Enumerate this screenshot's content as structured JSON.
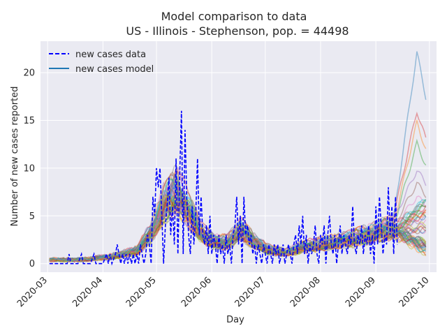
{
  "chart_data": {
    "type": "line",
    "title_line1": "Model comparison to data",
    "title_line2": "US - Illinois - Stephenson, pop. = 44498",
    "xlabel": "Day",
    "ylabel": "Number of new cases reported",
    "x_tick_labels": [
      "2020-03",
      "2020-04",
      "2020-05",
      "2020-06",
      "2020-07",
      "2020-08",
      "2020-09",
      "2020-10"
    ],
    "y_ticks": [
      0,
      5,
      10,
      15,
      20
    ],
    "ylim": [
      -0.9,
      23.3
    ],
    "xlim": [
      "2020-02-26",
      "2020-10-05"
    ],
    "x_start": "2020-03-02",
    "x_end": "2020-09-29",
    "grid": true,
    "legend_position": "top-left",
    "colors": {
      "data": "#0000ff",
      "model": "#1f77b4",
      "background": "#eaeaf2",
      "grid": "#ffffff"
    },
    "model_color_cycle": [
      "#1f77b4",
      "#ff7f0e",
      "#2ca02c",
      "#d62728",
      "#9467bd",
      "#8c564b",
      "#e377c2",
      "#7f7f7f",
      "#bcbd22",
      "#17becf"
    ],
    "series": [
      {
        "name": "new cases data",
        "style": "dashed",
        "points": [
          [
            "2020-03-02",
            0
          ],
          [
            "2020-03-08",
            0
          ],
          [
            "2020-03-12",
            0
          ],
          [
            "2020-03-13",
            1
          ],
          [
            "2020-03-14",
            0
          ],
          [
            "2020-03-18",
            0
          ],
          [
            "2020-03-20",
            1
          ],
          [
            "2020-03-21",
            0
          ],
          [
            "2020-03-25",
            0
          ],
          [
            "2020-03-27",
            1
          ],
          [
            "2020-03-28",
            0
          ],
          [
            "2020-04-01",
            0
          ],
          [
            "2020-04-03",
            1
          ],
          [
            "2020-04-04",
            0
          ],
          [
            "2020-04-05",
            1
          ],
          [
            "2020-04-06",
            0
          ],
          [
            "2020-04-08",
            1
          ],
          [
            "2020-04-09",
            2
          ],
          [
            "2020-04-10",
            1
          ],
          [
            "2020-04-11",
            0
          ],
          [
            "2020-04-12",
            1
          ],
          [
            "2020-04-13",
            0
          ],
          [
            "2020-04-14",
            1
          ],
          [
            "2020-04-15",
            0
          ],
          [
            "2020-04-16",
            1
          ],
          [
            "2020-04-17",
            0
          ],
          [
            "2020-04-18",
            1
          ],
          [
            "2020-04-19",
            0
          ],
          [
            "2020-04-20",
            1
          ],
          [
            "2020-04-21",
            0
          ],
          [
            "2020-04-22",
            2
          ],
          [
            "2020-04-23",
            1
          ],
          [
            "2020-04-24",
            0
          ],
          [
            "2020-04-25",
            1
          ],
          [
            "2020-04-26",
            3
          ],
          [
            "2020-04-27",
            2
          ],
          [
            "2020-04-28",
            0
          ],
          [
            "2020-04-29",
            7
          ],
          [
            "2020-04-30",
            5
          ],
          [
            "2020-05-01",
            10
          ],
          [
            "2020-05-02",
            8
          ],
          [
            "2020-05-03",
            10
          ],
          [
            "2020-05-04",
            5
          ],
          [
            "2020-05-05",
            0
          ],
          [
            "2020-05-06",
            4
          ],
          [
            "2020-05-07",
            6
          ],
          [
            "2020-05-08",
            9
          ],
          [
            "2020-05-09",
            3
          ],
          [
            "2020-05-10",
            6
          ],
          [
            "2020-05-11",
            2
          ],
          [
            "2020-05-12",
            11
          ],
          [
            "2020-05-13",
            1
          ],
          [
            "2020-05-14",
            9
          ],
          [
            "2020-05-15",
            16
          ],
          [
            "2020-05-16",
            1
          ],
          [
            "2020-05-17",
            14
          ],
          [
            "2020-05-18",
            7
          ],
          [
            "2020-05-19",
            3
          ],
          [
            "2020-05-20",
            1
          ],
          [
            "2020-05-21",
            6
          ],
          [
            "2020-05-22",
            2
          ],
          [
            "2020-05-23",
            5
          ],
          [
            "2020-05-24",
            11
          ],
          [
            "2020-05-25",
            3
          ],
          [
            "2020-05-26",
            7
          ],
          [
            "2020-05-27",
            3
          ],
          [
            "2020-05-28",
            2
          ],
          [
            "2020-05-29",
            4
          ],
          [
            "2020-05-30",
            1
          ],
          [
            "2020-05-31",
            5
          ],
          [
            "2020-06-01",
            1
          ],
          [
            "2020-06-02",
            3
          ],
          [
            "2020-06-03",
            2
          ],
          [
            "2020-06-04",
            0
          ],
          [
            "2020-06-05",
            3
          ],
          [
            "2020-06-06",
            1
          ],
          [
            "2020-06-07",
            2
          ],
          [
            "2020-06-08",
            0
          ],
          [
            "2020-06-09",
            3
          ],
          [
            "2020-06-10",
            1
          ],
          [
            "2020-06-11",
            2
          ],
          [
            "2020-06-12",
            0
          ],
          [
            "2020-06-13",
            3
          ],
          [
            "2020-06-14",
            4
          ],
          [
            "2020-06-15",
            7
          ],
          [
            "2020-06-16",
            2
          ],
          [
            "2020-06-17",
            5
          ],
          [
            "2020-06-18",
            0
          ],
          [
            "2020-06-19",
            7
          ],
          [
            "2020-06-20",
            3
          ],
          [
            "2020-06-21",
            4
          ],
          [
            "2020-06-22",
            2
          ],
          [
            "2020-06-23",
            3
          ],
          [
            "2020-06-24",
            1
          ],
          [
            "2020-06-25",
            2
          ],
          [
            "2020-06-26",
            0
          ],
          [
            "2020-06-27",
            2
          ],
          [
            "2020-06-28",
            1
          ],
          [
            "2020-06-29",
            0
          ],
          [
            "2020-06-30",
            2
          ],
          [
            "2020-07-01",
            1
          ],
          [
            "2020-07-02",
            0
          ],
          [
            "2020-07-03",
            2
          ],
          [
            "2020-07-04",
            1
          ],
          [
            "2020-07-05",
            0
          ],
          [
            "2020-07-06",
            2
          ],
          [
            "2020-07-07",
            1
          ],
          [
            "2020-07-08",
            2
          ],
          [
            "2020-07-09",
            0
          ],
          [
            "2020-07-10",
            1
          ],
          [
            "2020-07-11",
            2
          ],
          [
            "2020-07-12",
            0
          ],
          [
            "2020-07-13",
            1
          ],
          [
            "2020-07-14",
            2
          ],
          [
            "2020-07-15",
            1
          ],
          [
            "2020-07-16",
            0
          ],
          [
            "2020-07-17",
            2
          ],
          [
            "2020-07-18",
            3
          ],
          [
            "2020-07-19",
            1
          ],
          [
            "2020-07-20",
            4
          ],
          [
            "2020-07-21",
            2
          ],
          [
            "2020-07-22",
            5
          ],
          [
            "2020-07-23",
            1
          ],
          [
            "2020-07-24",
            3
          ],
          [
            "2020-07-25",
            0
          ],
          [
            "2020-07-26",
            2
          ],
          [
            "2020-07-27",
            1
          ],
          [
            "2020-07-28",
            2
          ],
          [
            "2020-07-29",
            4
          ],
          [
            "2020-07-30",
            1
          ],
          [
            "2020-07-31",
            0
          ],
          [
            "2020-08-01",
            3
          ],
          [
            "2020-08-02",
            2
          ],
          [
            "2020-08-03",
            4
          ],
          [
            "2020-08-04",
            0
          ],
          [
            "2020-08-05",
            3
          ],
          [
            "2020-08-06",
            5
          ],
          [
            "2020-08-07",
            2
          ],
          [
            "2020-08-08",
            1
          ],
          [
            "2020-08-09",
            3
          ],
          [
            "2020-08-10",
            0
          ],
          [
            "2020-08-11",
            2
          ],
          [
            "2020-08-12",
            4
          ],
          [
            "2020-08-13",
            1
          ],
          [
            "2020-08-14",
            3
          ],
          [
            "2020-08-15",
            2
          ],
          [
            "2020-08-16",
            1
          ],
          [
            "2020-08-17",
            3
          ],
          [
            "2020-08-18",
            2
          ],
          [
            "2020-08-19",
            6
          ],
          [
            "2020-08-20",
            2
          ],
          [
            "2020-08-21",
            1
          ],
          [
            "2020-08-22",
            3
          ],
          [
            "2020-08-23",
            2
          ],
          [
            "2020-08-24",
            4
          ],
          [
            "2020-08-25",
            1
          ],
          [
            "2020-08-26",
            3
          ],
          [
            "2020-08-27",
            2
          ],
          [
            "2020-08-28",
            4
          ],
          [
            "2020-08-29",
            1
          ],
          [
            "2020-08-30",
            3
          ],
          [
            "2020-08-31",
            0
          ],
          [
            "2020-09-01",
            6
          ],
          [
            "2020-09-02",
            2
          ],
          [
            "2020-09-03",
            7
          ],
          [
            "2020-09-04",
            4
          ],
          [
            "2020-09-05",
            1
          ],
          [
            "2020-09-06",
            3
          ],
          [
            "2020-09-07",
            2
          ],
          [
            "2020-09-08",
            8
          ],
          [
            "2020-09-09",
            3
          ],
          [
            "2020-09-10",
            6
          ],
          [
            "2020-09-11",
            1
          ],
          [
            "2020-09-12",
            7
          ],
          [
            "2020-09-13",
            2
          ]
        ]
      },
      {
        "name": "new cases model",
        "style": "solid",
        "count": 60,
        "knots": [
          [
            "2020-03-02",
            0.4
          ],
          [
            "2020-03-20",
            0.4
          ],
          [
            "2020-04-05",
            0.7
          ],
          [
            "2020-04-20",
            1.3
          ],
          [
            "2020-04-28",
            3.2
          ],
          [
            "2020-05-05",
            6
          ],
          [
            "2020-05-12",
            7.5
          ],
          [
            "2020-05-18",
            5.8
          ],
          [
            "2020-05-25",
            3.5
          ],
          [
            "2020-06-02",
            2.2
          ],
          [
            "2020-06-10",
            2.2
          ],
          [
            "2020-06-17",
            3.6
          ],
          [
            "2020-06-24",
            2.4
          ],
          [
            "2020-07-02",
            1.5
          ],
          [
            "2020-07-12",
            1.1
          ],
          [
            "2020-07-22",
            1.7
          ],
          [
            "2020-08-01",
            2.0
          ],
          [
            "2020-08-15",
            2.4
          ],
          [
            "2020-08-28",
            3.0
          ],
          [
            "2020-09-07",
            3.6
          ],
          [
            "2020-09-18",
            3.3
          ],
          [
            "2020-09-29",
            2.8
          ]
        ],
        "late_peak_values": [
          22.1,
          14.8,
          12.6,
          16.0,
          9.8,
          8.4,
          7.0,
          5.5
        ]
      }
    ]
  }
}
